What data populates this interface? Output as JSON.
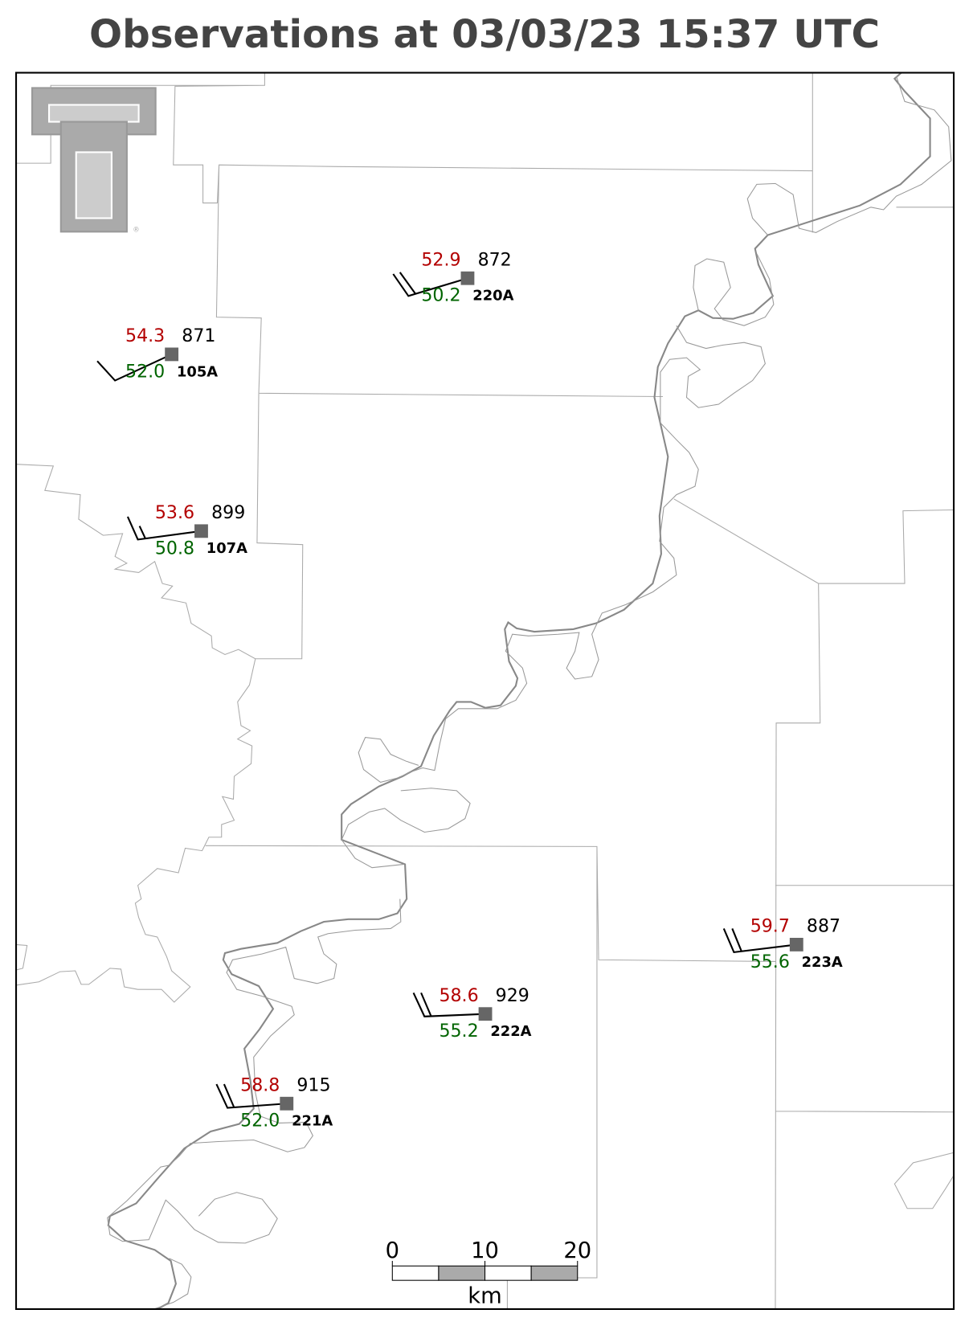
{
  "title": "Observations at 03/03/23 15:37 UTC",
  "stations": [
    {
      "id": "220A",
      "temperature": "52.9",
      "dewpoint": "50.2",
      "pressure": 872
    },
    {
      "id": "105A",
      "temperature": "54.3",
      "dewpoint": "52.0",
      "pressure": 871
    },
    {
      "id": "107A",
      "temperature": "53.6",
      "dewpoint": "50.8",
      "pressure": 899
    },
    {
      "id": "223A",
      "temperature": "59.7",
      "dewpoint": "55.6",
      "pressure": 887
    },
    {
      "id": "222A",
      "temperature": "58.6",
      "dewpoint": "55.2",
      "pressure": 929
    },
    {
      "id": "221A",
      "temperature": "58.8",
      "dewpoint": "52.0",
      "pressure": 915
    }
  ],
  "scale_bar": {
    "ticks": [
      0,
      10,
      20
    ],
    "unit": "km"
  }
}
